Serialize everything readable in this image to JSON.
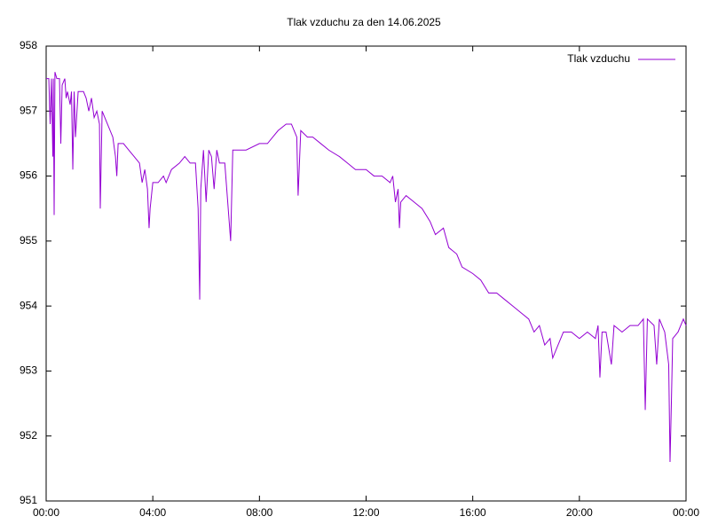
{
  "chart_data": {
    "type": "line",
    "title": "Tlak vzduchu za den 14.06.2025",
    "x": [
      0.0,
      0.1,
      0.15,
      0.2,
      0.25,
      0.27,
      0.3,
      0.33,
      0.4,
      0.5,
      0.55,
      0.6,
      0.7,
      0.75,
      0.8,
      0.9,
      0.95,
      1.0,
      1.05,
      1.1,
      1.2,
      1.4,
      1.5,
      1.6,
      1.7,
      1.8,
      1.9,
      2.0,
      2.03,
      2.1,
      2.3,
      2.5,
      2.6,
      2.65,
      2.7,
      2.9,
      3.1,
      3.3,
      3.5,
      3.6,
      3.7,
      3.8,
      3.86,
      3.9,
      4.0,
      4.2,
      4.4,
      4.5,
      4.7,
      5.0,
      5.2,
      5.4,
      5.6,
      5.7,
      5.76,
      5.8,
      5.9,
      6.0,
      6.1,
      6.2,
      6.3,
      6.4,
      6.5,
      6.7,
      6.92,
      7.0,
      7.5,
      8.0,
      8.3,
      8.5,
      8.7,
      9.0,
      9.2,
      9.4,
      9.45,
      9.55,
      9.8,
      10.0,
      10.3,
      10.6,
      11.0,
      11.3,
      11.6,
      12.0,
      12.3,
      12.6,
      12.9,
      13.0,
      13.1,
      13.2,
      13.25,
      13.3,
      13.5,
      13.8,
      14.1,
      14.4,
      14.6,
      14.9,
      15.1,
      15.4,
      15.6,
      16.0,
      16.3,
      16.6,
      16.9,
      17.2,
      17.5,
      17.8,
      18.1,
      18.3,
      18.5,
      18.7,
      18.9,
      19.0,
      19.2,
      19.4,
      19.7,
      20.0,
      20.3,
      20.6,
      20.7,
      20.77,
      20.85,
      21.0,
      21.2,
      21.3,
      21.6,
      21.9,
      22.2,
      22.4,
      22.47,
      22.55,
      22.8,
      22.9,
      23.0,
      23.2,
      23.35,
      23.4,
      23.45,
      23.5,
      23.7,
      23.9,
      24.0
    ],
    "series": [
      {
        "name": "Tlak vzduchu",
        "color": "#9400d3",
        "values": [
          957.5,
          957.5,
          956.8,
          957.5,
          956.3,
          957.5,
          955.4,
          957.6,
          957.5,
          957.5,
          956.5,
          957.4,
          957.5,
          957.2,
          957.3,
          957.1,
          957.3,
          956.1,
          957.3,
          956.6,
          957.3,
          957.3,
          957.2,
          957.0,
          957.2,
          956.9,
          957.0,
          956.8,
          955.5,
          957.0,
          956.8,
          956.6,
          956.3,
          956.0,
          956.5,
          956.5,
          956.4,
          956.3,
          956.2,
          955.9,
          956.1,
          955.8,
          955.2,
          955.5,
          955.9,
          955.9,
          956.0,
          955.9,
          956.1,
          956.2,
          956.3,
          956.2,
          956.2,
          955.5,
          954.1,
          955.8,
          956.4,
          955.6,
          956.4,
          956.3,
          955.8,
          956.4,
          956.2,
          956.2,
          955.0,
          956.4,
          956.4,
          956.5,
          956.5,
          956.6,
          956.7,
          956.8,
          956.8,
          956.6,
          955.7,
          956.7,
          956.6,
          956.6,
          956.5,
          956.4,
          956.3,
          956.2,
          956.1,
          956.1,
          956.0,
          956.0,
          955.9,
          956.0,
          955.6,
          955.8,
          955.2,
          955.6,
          955.7,
          955.6,
          955.5,
          955.3,
          955.1,
          955.2,
          954.9,
          954.8,
          954.6,
          954.5,
          954.4,
          954.2,
          954.2,
          954.1,
          954.0,
          953.9,
          953.8,
          953.6,
          953.7,
          953.4,
          953.5,
          953.2,
          953.4,
          953.6,
          953.6,
          953.5,
          953.6,
          953.5,
          953.7,
          952.9,
          953.6,
          953.6,
          953.1,
          953.7,
          953.6,
          953.7,
          953.7,
          953.8,
          952.4,
          953.8,
          953.7,
          953.1,
          953.8,
          953.6,
          953.1,
          951.6,
          952.5,
          953.5,
          953.6,
          953.8,
          953.7
        ]
      }
    ],
    "xlim": [
      0,
      24
    ],
    "xticks": [
      {
        "value": 0,
        "label": "00:00"
      },
      {
        "value": 4,
        "label": "04:00"
      },
      {
        "value": 8,
        "label": "08:00"
      },
      {
        "value": 12,
        "label": "12:00"
      },
      {
        "value": 16,
        "label": "16:00"
      },
      {
        "value": 20,
        "label": "20:00"
      },
      {
        "value": 24,
        "label": "00:00"
      }
    ],
    "ylim": [
      951,
      958
    ],
    "yticks": [
      951,
      952,
      953,
      954,
      955,
      956,
      957,
      958
    ],
    "legend": "upper right",
    "grid": false
  }
}
